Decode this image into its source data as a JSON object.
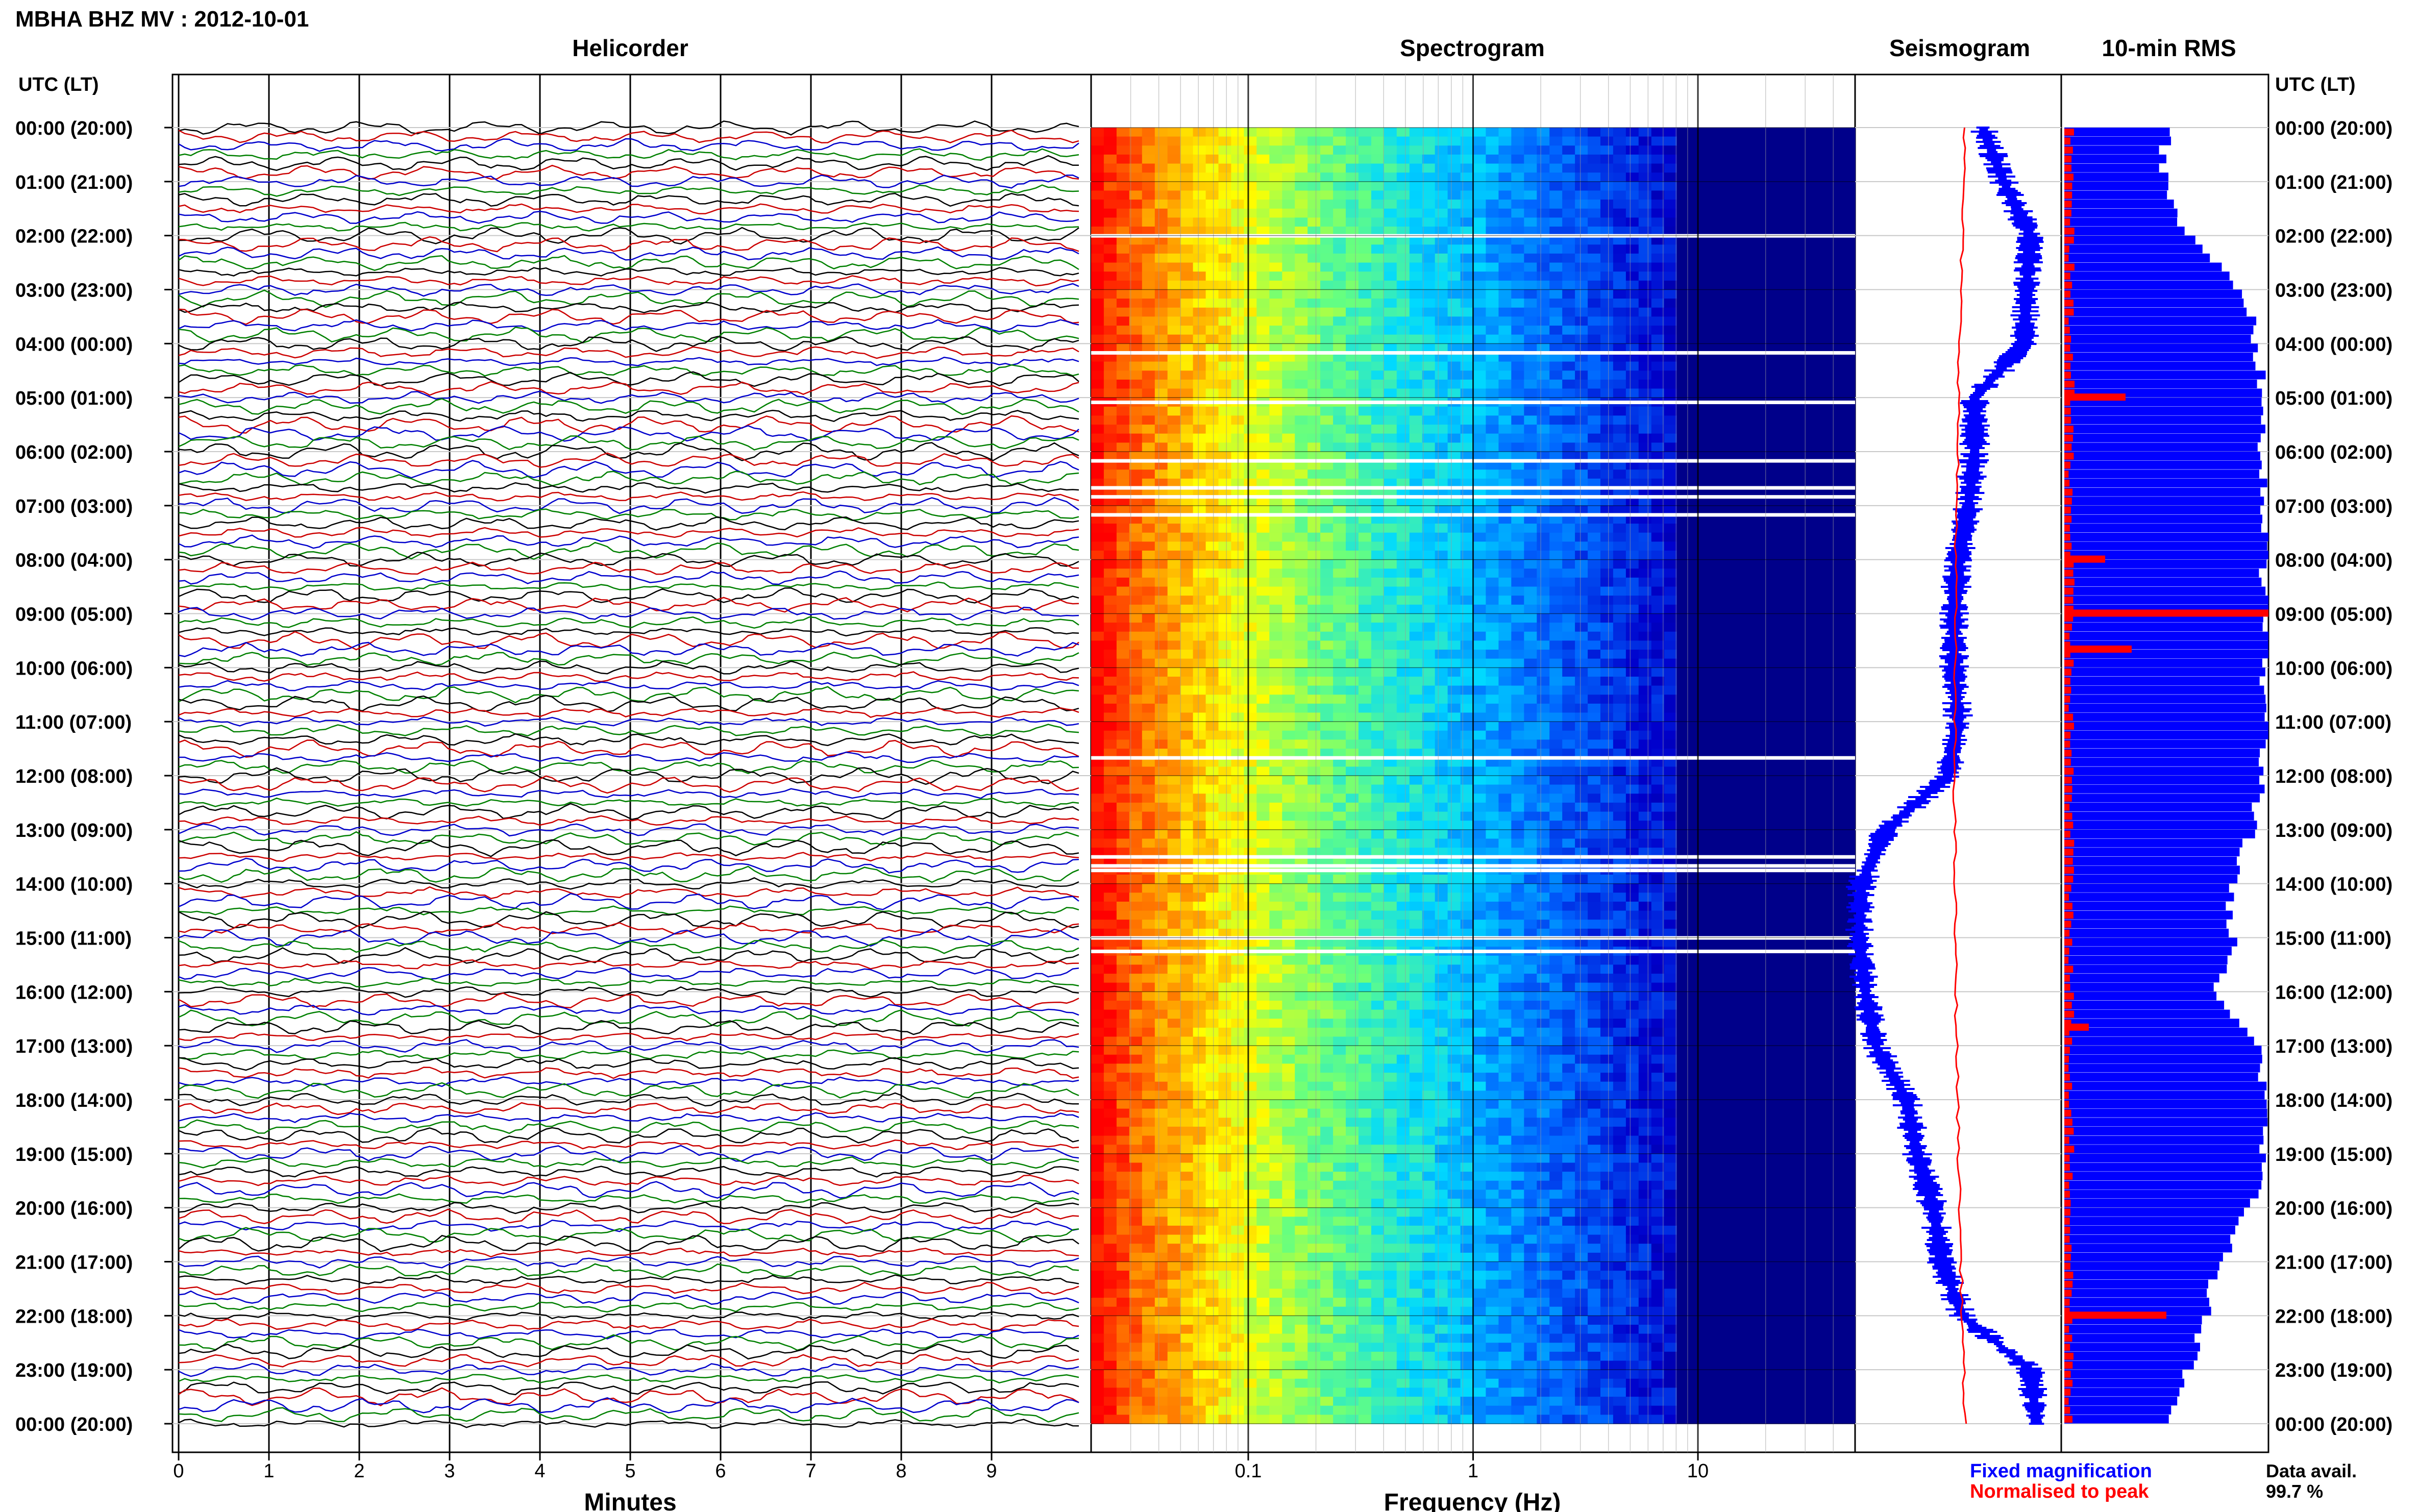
{
  "header": {
    "title": "MBHA BHZ MV : 2012-10-01"
  },
  "panels": {
    "helicorder": "Helicorder",
    "spectrogram": "Spectrogram",
    "seismogram": "Seismogram",
    "rms": "10-min RMS"
  },
  "axis": {
    "time_header": "UTC (LT)",
    "minutes_label": "Minutes",
    "frequency_label": "Frequency (Hz)",
    "minute_ticks": [
      "0",
      "1",
      "2",
      "3",
      "4",
      "5",
      "6",
      "7",
      "8",
      "9"
    ],
    "frequency_ticks": [
      "0.1",
      "1",
      "10"
    ],
    "time_ticks": [
      "00:00 (20:00)",
      "01:00 (21:00)",
      "02:00 (22:00)",
      "03:00 (23:00)",
      "04:00 (00:00)",
      "05:00 (01:00)",
      "06:00 (02:00)",
      "07:00 (03:00)",
      "08:00 (04:00)",
      "09:00 (05:00)",
      "10:00 (06:00)",
      "11:00 (07:00)",
      "12:00 (08:00)",
      "13:00 (09:00)",
      "14:00 (10:00)",
      "15:00 (11:00)",
      "16:00 (12:00)",
      "17:00 (13:00)",
      "18:00 (14:00)",
      "19:00 (15:00)",
      "20:00 (16:00)",
      "21:00 (17:00)",
      "22:00 (18:00)",
      "23:00 (19:00)",
      "00:00 (20:00)"
    ]
  },
  "legend": {
    "fixed": "Fixed magnification",
    "normalised": "Normalised to peak",
    "avail_label": "Data avail.",
    "avail_value": "99.7 %"
  },
  "colors": {
    "helicorder_traces": [
      "#000000",
      "#cc0000",
      "#0000cc",
      "#008000"
    ],
    "fixed": "#0000ff",
    "normalised": "#ff0000",
    "spectro_high": "#ff2000",
    "spectro_low": "#000080"
  },
  "chart_data": {
    "type": "heatmap",
    "title": "MBHA BHZ MV : 2012-10-01",
    "panels": [
      "Helicorder",
      "Spectrogram",
      "Seismogram",
      "10-min RMS"
    ],
    "xlabel_helicorder": "Minutes",
    "xlim_helicorder": [
      0,
      10
    ],
    "xlabel_spectrogram": "Frequency (Hz)",
    "xlim_spectrogram_hz": [
      0.02,
      50
    ],
    "x_scale_spectrogram": "log",
    "y_range_utc": [
      "00:00",
      "24:00"
    ],
    "rows_per_hour": 6,
    "spectrogram_gaps_utc": [
      "02:00",
      "04:10",
      "05:05",
      "06:10",
      "06:40",
      "06:50",
      "07:10",
      "11:40",
      "13:30",
      "13:40",
      "13:45",
      "15:00",
      "15:15"
    ],
    "seismogram_fixed_envelope_utc": [
      [
        "00:00",
        0.62
      ],
      [
        "01:00",
        0.72
      ],
      [
        "02:00",
        0.85
      ],
      [
        "03:00",
        0.83
      ],
      [
        "04:00",
        0.82
      ],
      [
        "05:00",
        0.58
      ],
      [
        "06:00",
        0.58
      ],
      [
        "07:00",
        0.55
      ],
      [
        "08:00",
        0.5
      ],
      [
        "09:00",
        0.48
      ],
      [
        "10:00",
        0.48
      ],
      [
        "11:00",
        0.5
      ],
      [
        "12:00",
        0.45
      ],
      [
        "13:00",
        0.15
      ],
      [
        "14:00",
        0.03
      ],
      [
        "15:00",
        0.02
      ],
      [
        "16:00",
        0.05
      ],
      [
        "17:00",
        0.1
      ],
      [
        "18:00",
        0.25
      ],
      [
        "19:00",
        0.3
      ],
      [
        "20:00",
        0.38
      ],
      [
        "21:00",
        0.42
      ],
      [
        "22:00",
        0.52
      ],
      [
        "23:00",
        0.85
      ],
      [
        "24:00",
        0.88
      ]
    ],
    "rms_fixed_fraction_utc": [
      [
        "00:00",
        0.5
      ],
      [
        "01:00",
        0.48
      ],
      [
        "02:00",
        0.62
      ],
      [
        "03:00",
        0.9
      ],
      [
        "04:00",
        0.95
      ],
      [
        "05:00",
        0.97
      ],
      [
        "06:00",
        0.97
      ],
      [
        "07:00",
        0.98
      ],
      [
        "08:00",
        0.98
      ],
      [
        "09:00",
        0.99
      ],
      [
        "10:00",
        0.98
      ],
      [
        "11:00",
        0.98
      ],
      [
        "12:00",
        0.97
      ],
      [
        "13:00",
        0.92
      ],
      [
        "14:00",
        0.8
      ],
      [
        "15:00",
        0.82
      ],
      [
        "16:00",
        0.72
      ],
      [
        "17:00",
        0.97
      ],
      [
        "18:00",
        0.98
      ],
      [
        "19:00",
        0.98
      ],
      [
        "20:00",
        0.9
      ],
      [
        "21:00",
        0.75
      ],
      [
        "22:00",
        0.7
      ],
      [
        "23:00",
        0.6
      ],
      [
        "24:00",
        0.5
      ]
    ],
    "rms_spikes_utc": [
      [
        "05:00",
        0.3
      ],
      [
        "08:00",
        0.2
      ],
      [
        "09:00",
        1.0
      ],
      [
        "09:40",
        0.33
      ],
      [
        "16:40",
        0.12
      ],
      [
        "22:00",
        0.5
      ]
    ]
  }
}
